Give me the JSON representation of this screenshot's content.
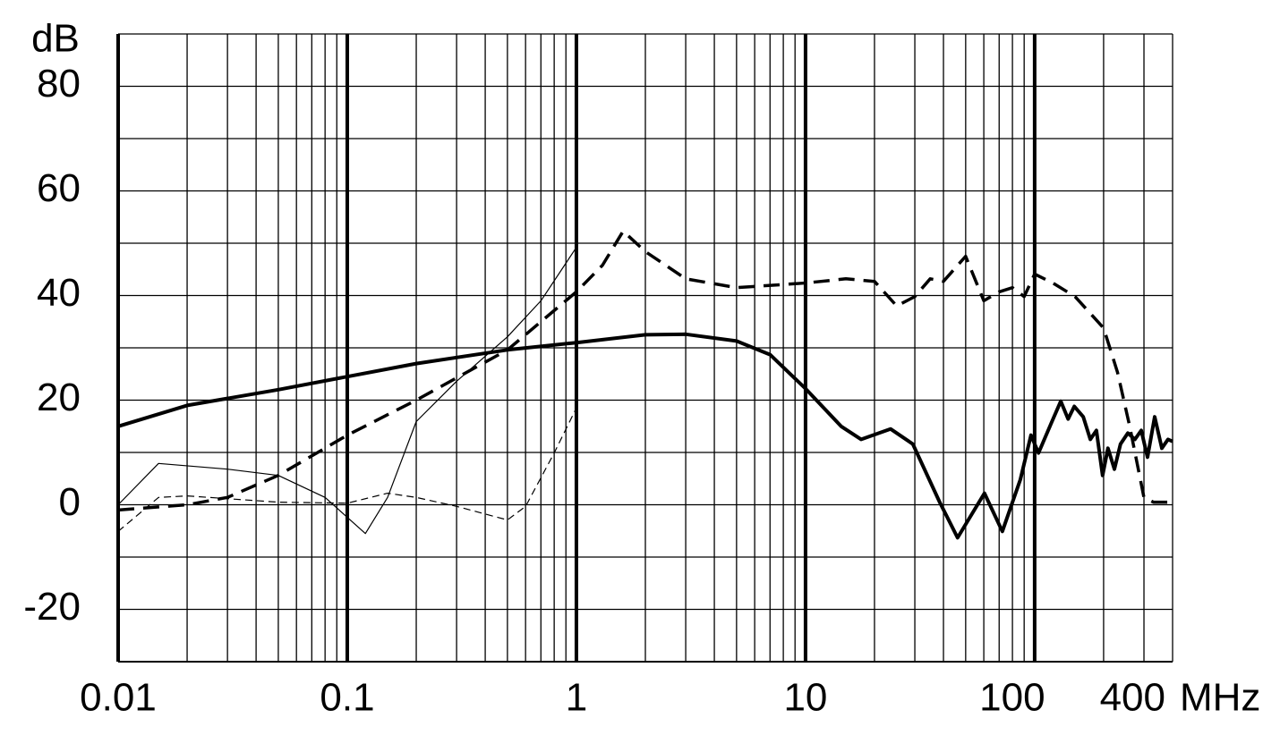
{
  "chart_data": {
    "type": "line",
    "x_scale": "log",
    "y_unit_label": "dB",
    "x_unit_label": "MHz",
    "xlim": [
      0.01,
      400
    ],
    "xticks": [
      0.01,
      0.1,
      1,
      10,
      100,
      400
    ],
    "ylim": [
      -30,
      90
    ],
    "yticks": [
      -20,
      0,
      20,
      40,
      60,
      80
    ],
    "minor_yticks": [
      -30,
      -10,
      10,
      30,
      50,
      70,
      90
    ],
    "grid": true,
    "series": [
      {
        "color": "#000000",
        "width": 4,
        "dash": "solid",
        "x": [
          0.01,
          0.02,
          0.05,
          0.1,
          0.2,
          0.5,
          1,
          2,
          3,
          5,
          7,
          10,
          14.3,
          17.5,
          23.5,
          29.4,
          38.5,
          46.1,
          60.4,
          72.3,
          86.6,
          96.4,
          104,
          119,
          130,
          140,
          149,
          163,
          175,
          186,
          198,
          209,
          223,
          237,
          255,
          274,
          292,
          311,
          334,
          359,
          382,
          400
        ],
        "values": [
          15,
          19,
          22,
          24.5,
          27,
          29.6,
          31,
          32.5,
          32.6,
          31.3,
          28.7,
          22.2,
          15,
          12.5,
          14.5,
          11.6,
          0.5,
          -6.3,
          2.2,
          -5.1,
          4.8,
          13.3,
          9.9,
          15.9,
          19.8,
          16.4,
          18.8,
          16.8,
          12.5,
          14.2,
          5.6,
          10.8,
          6.8,
          11.6,
          13.7,
          12.5,
          14.2,
          9.1,
          16.8,
          10.8,
          12.5,
          12.1
        ]
      },
      {
        "color": "#000000",
        "width": 3.5,
        "dash": "dashed",
        "x": [
          0.01,
          0.02,
          0.03,
          0.05,
          0.1,
          0.2,
          0.5,
          1,
          1.3,
          1.6,
          2,
          3,
          5,
          10,
          15,
          20,
          25,
          30,
          35,
          40,
          50,
          60,
          70,
          80,
          90,
          100,
          120,
          150,
          200,
          230,
          260,
          300,
          330,
          400
        ],
        "values": [
          -1,
          0,
          1.4,
          5.6,
          13.3,
          20,
          29.6,
          40.7,
          45.8,
          52.3,
          48.4,
          43.2,
          41.5,
          42.4,
          43.2,
          42.7,
          38,
          39.8,
          43.2,
          42.7,
          47.5,
          39,
          40.7,
          41.5,
          39.8,
          44.1,
          42.4,
          39.8,
          33.8,
          25.3,
          15,
          1.4,
          0.5,
          0.5
        ]
      },
      {
        "color": "#000000",
        "width": 1.2,
        "dash": "solid",
        "x": [
          0.01,
          0.015,
          0.03,
          0.05,
          0.08,
          0.12,
          0.15,
          0.2,
          0.3,
          0.5,
          0.7,
          1
        ],
        "values": [
          0,
          7.9,
          6.8,
          5.6,
          1.4,
          -5.5,
          1.4,
          15.9,
          23.6,
          32.1,
          39,
          49.2
        ]
      },
      {
        "color": "#000000",
        "width": 1.2,
        "dash": "dashed",
        "x": [
          0.01,
          0.015,
          0.02,
          0.05,
          0.1,
          0.15,
          0.2,
          0.3,
          0.5,
          0.6,
          0.8,
          1
        ],
        "values": [
          -5.1,
          1.4,
          1.7,
          0.5,
          0.3,
          2.2,
          1.4,
          -0.3,
          -2.9,
          -0.3,
          9.9,
          18.5
        ]
      }
    ]
  }
}
